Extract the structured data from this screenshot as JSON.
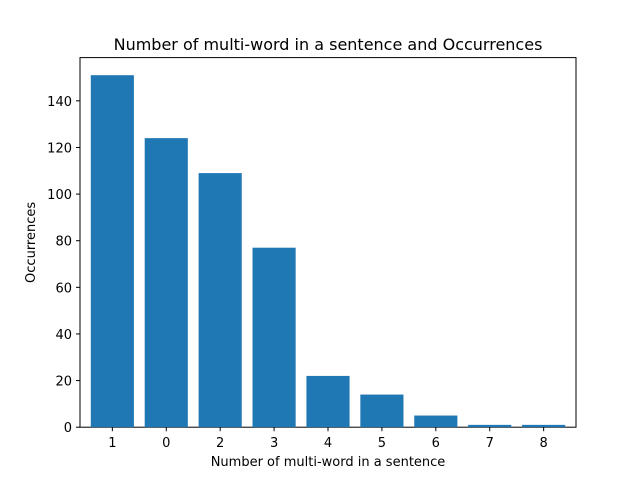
{
  "chart_data": {
    "type": "bar",
    "title": "Number of multi-word in a sentence and Occurrences",
    "xlabel": "Number of multi-word in a sentence",
    "ylabel": "Occurrences",
    "categories": [
      "1",
      "0",
      "2",
      "3",
      "4",
      "5",
      "6",
      "7",
      "8"
    ],
    "values": [
      151,
      124,
      109,
      77,
      22,
      14,
      5,
      1,
      1
    ],
    "ylim": [
      0,
      158.55
    ],
    "yticks": [
      0,
      20,
      40,
      60,
      80,
      100,
      120,
      140
    ],
    "grid": false,
    "bar_color": "#1f77b4"
  }
}
